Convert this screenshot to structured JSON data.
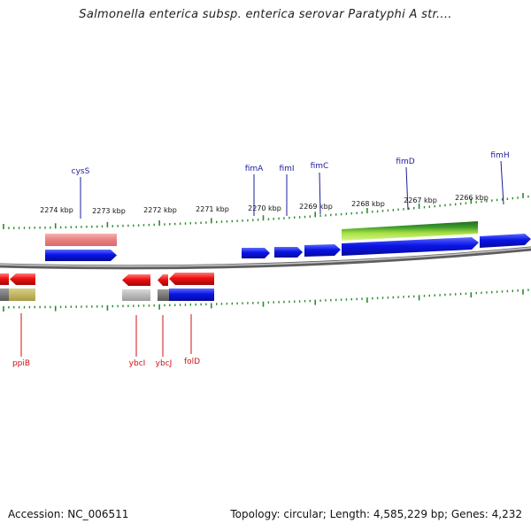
{
  "title": "Salmonella enterica subsp. enterica serovar Paratyphi A str....",
  "footer": {
    "accession": "Accession: NC_006511",
    "summary": "Topology: circular; Length: 4,585,229 bp; Genes: 4,232"
  },
  "colors": {
    "forward_gene": "#0a14e6",
    "reverse_gene": "#ee1010",
    "label_top": "#1c1c9a",
    "label_bottom": "#d01010",
    "tick": "#2a8a2a",
    "backbone": "#8a8a8a"
  },
  "scale": {
    "labels": [
      "2274 kbp",
      "2273 kbp",
      "2272 kbp",
      "2271 kbp",
      "2270 kbp",
      "2269 kbp",
      "2268 kbp",
      "2267 kbp",
      "2266 kbp"
    ]
  },
  "genes_top": [
    {
      "label": "cysS"
    },
    {
      "label": "fimA"
    },
    {
      "label": "fimI"
    },
    {
      "label": "fimC"
    },
    {
      "label": "fimD"
    },
    {
      "label": "fimH"
    }
  ],
  "genes_bottom": [
    {
      "label": "ppiB"
    },
    {
      "label": "ybcI"
    },
    {
      "label": "ybcJ"
    },
    {
      "label": "folD"
    }
  ]
}
